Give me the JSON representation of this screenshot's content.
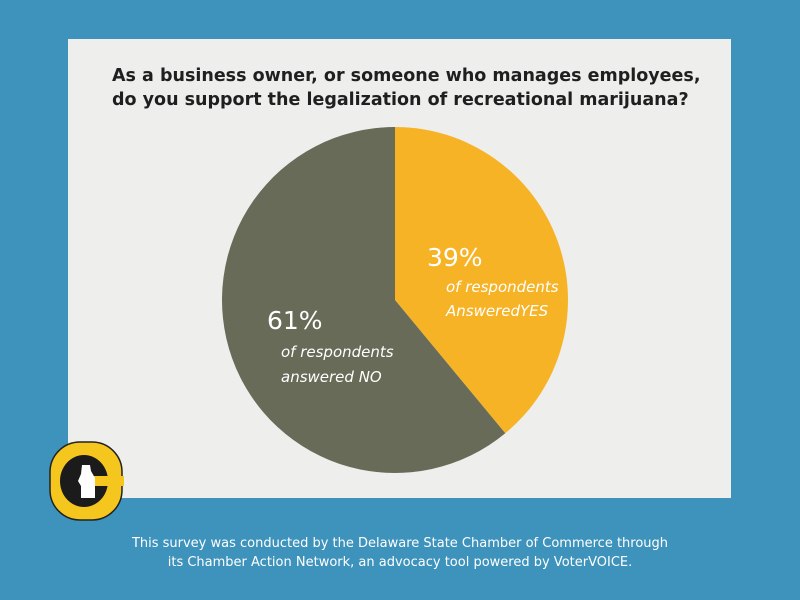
{
  "colors": {
    "background": "#3d93bb",
    "card": "#eeeeec",
    "yes": "#f7b326",
    "no": "#676b58",
    "logo_ring": "#f5c61d",
    "logo_center": "#1b1b1b"
  },
  "chart_data": {
    "type": "pie",
    "title_lines": [
      "As a business owner, or someone who manages employees,",
      "do you support the legalization of recreational marijuana?"
    ],
    "slices": [
      {
        "label_pct": "39%",
        "label_lines": [
          "of respondents",
          "AnsweredYES"
        ],
        "value": 39,
        "color": "#f7b326"
      },
      {
        "label_pct": "61%",
        "label_lines": [
          "of respondents",
          "answered NO"
        ],
        "value": 61,
        "color": "#676b58"
      }
    ]
  },
  "footer": {
    "line1": "This survey was conducted by the Delaware State Chamber of Commerce through",
    "line2": "its Chamber Action Network, an advocacy tool powered by VoterVOICE."
  },
  "logo": {
    "icon": "delaware-state-chamber-logo-icon"
  }
}
